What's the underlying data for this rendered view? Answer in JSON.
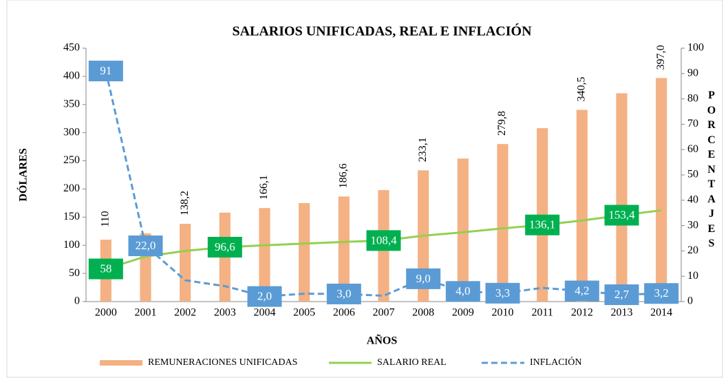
{
  "chart_data": {
    "type": "bar-line",
    "title": "SALARIOS UNIFICADAS, REAL E INFLACIÓN",
    "x_label": "AÑOS",
    "y_label": "DÓLARES",
    "y2_label": "PORCENTAJES",
    "categories": [
      "2000",
      "2001",
      "2002",
      "2003",
      "2004",
      "2005",
      "2006",
      "2007",
      "2008",
      "2009",
      "2010",
      "2011",
      "2012",
      "2013",
      "2014"
    ],
    "series": [
      {
        "name": "REMUNERACIONES UNIFICADAS",
        "kind": "bar",
        "color": "#f4b183",
        "values": [
          110,
          121,
          138.2,
          158,
          166.1,
          175,
          186.6,
          198,
          233.1,
          254,
          279.8,
          308,
          340.5,
          370,
          397.0
        ],
        "value_labels": [
          "110",
          null,
          "138,2",
          null,
          "166,1",
          null,
          "186,6",
          null,
          "233,1",
          null,
          "279,8",
          null,
          "340,5",
          null,
          "397,0"
        ]
      },
      {
        "name": "SALARIO REAL",
        "kind": "line",
        "color": "#92d050",
        "label_color": "#00b050",
        "values": [
          58,
          80,
          90,
          96.6,
          100,
          103,
          106,
          108.4,
          117,
          123,
          130,
          136.1,
          144,
          153.4,
          162
        ],
        "value_labels": [
          "58",
          null,
          null,
          "96,6",
          null,
          null,
          null,
          "108,4",
          null,
          null,
          null,
          "136,1",
          null,
          "153,4",
          null
        ]
      },
      {
        "name": "INFLACIÓN",
        "kind": "dashed-line",
        "axis": "y2",
        "color": "#5b9bd5",
        "values": [
          91,
          22.0,
          8.4,
          6.1,
          2.0,
          3.1,
          3.0,
          2.3,
          9.0,
          4.0,
          3.3,
          5.4,
          4.2,
          2.7,
          3.2
        ],
        "value_labels": [
          "91",
          "22,0",
          null,
          null,
          "2,0",
          null,
          "3,0",
          null,
          "9,0",
          "4,0",
          "3,3",
          null,
          "4,2",
          "2,7",
          "3,2"
        ]
      }
    ],
    "ylim": [
      0,
      450
    ],
    "yticks": [
      0,
      50,
      100,
      150,
      200,
      250,
      300,
      350,
      400,
      450
    ],
    "y2lim": [
      0,
      100
    ],
    "y2ticks": [
      0,
      10,
      20,
      30,
      40,
      50,
      60,
      70,
      80,
      90,
      100
    ],
    "legend": "bottom"
  }
}
